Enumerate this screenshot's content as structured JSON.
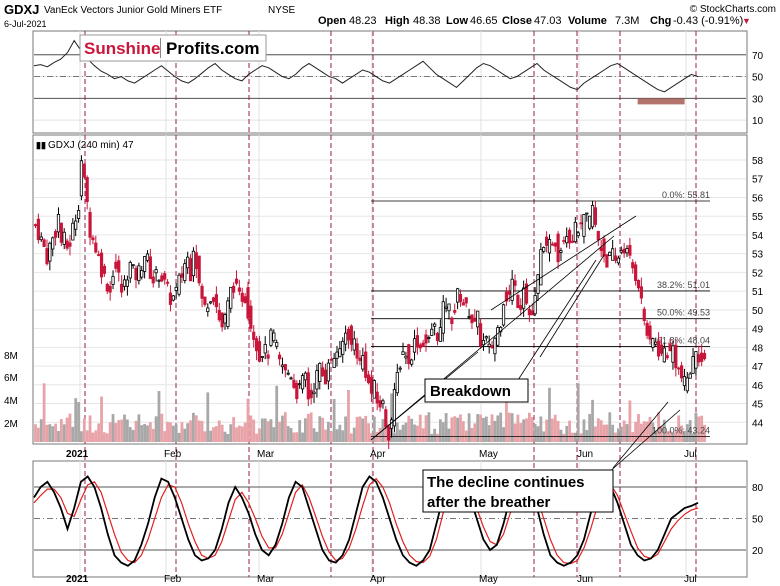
{
  "header": {
    "symbol": "GDXJ",
    "name": "VanEck Vectors Junior Gold Miners ETF",
    "exchange": "NYSE",
    "date": "6-Jul-2021",
    "open_label": "Open",
    "open": "48.23",
    "high_label": "High",
    "high": "48.38",
    "low_label": "Low",
    "low": "46.65",
    "close_label": "Close",
    "close": "47.03",
    "volume_label": "Volume",
    "volume": "7.3M",
    "chg_label": "Chg",
    "chg": "-0.43 (-0.91%)",
    "credit": "© StockCharts.com"
  },
  "logo": {
    "part1": "Sunshine",
    "part2": "Profits.com"
  },
  "colors": {
    "up": "#000000",
    "down": "#c8173a",
    "vol_up": "#a8a8a8",
    "vol_down": "#e8a3a8",
    "vline": "#9b1b4a",
    "stoch_k": "#000000",
    "stoch_d": "#e0201f",
    "rsi": "#222222",
    "rsi_fill": "#a35a52"
  },
  "chart_data": [
    {
      "type": "line",
      "panel": "RSI",
      "yticks": [
        10,
        30,
        50,
        70
      ],
      "ylim": [
        0,
        90
      ],
      "reference_lines": [
        30,
        70
      ],
      "series": [
        {
          "values": [
            60,
            61,
            59,
            63,
            66,
            72,
            83,
            74,
            66,
            60,
            55,
            52,
            48,
            50,
            46,
            44,
            48,
            52,
            56,
            60,
            55,
            50,
            46,
            44,
            48,
            53,
            58,
            62,
            56,
            52,
            48,
            46,
            52,
            56,
            60,
            58,
            54,
            50,
            48,
            52,
            58,
            62,
            58,
            54,
            50,
            48,
            44,
            48,
            52,
            56,
            54,
            50,
            46,
            44,
            48,
            52,
            56,
            60,
            64,
            58,
            52,
            48,
            44,
            40,
            46,
            52,
            58,
            62,
            60,
            56,
            52,
            48,
            50,
            54,
            58,
            62,
            56,
            52,
            48,
            44,
            40,
            38,
            44,
            48,
            52,
            56,
            60,
            62,
            58,
            54,
            50,
            46,
            42,
            38,
            36,
            40,
            44,
            48,
            52,
            50
          ]
        }
      ]
    },
    {
      "type": "candlestick",
      "panel": "price",
      "title": "GDXJ (240 min) 47",
      "yticks": [
        44,
        45,
        46,
        47,
        48,
        49,
        50,
        51,
        52,
        53,
        54,
        55,
        56,
        57,
        58
      ],
      "ylim": [
        43.0,
        58.8
      ],
      "x_labels": [
        "2021",
        "Feb",
        "Mar",
        "Apr",
        "May",
        "Jun",
        "Jul"
      ],
      "volume_ticks": [
        "8M",
        "6M",
        "4M",
        "2M"
      ],
      "fibonacci": [
        {
          "label": "0.0%: 55.81",
          "value": 55.81
        },
        {
          "label": "38.2%: 51.01",
          "value": 51.01
        },
        {
          "label": "50.0%: 49.53",
          "value": 49.53
        },
        {
          "label": "61.8%: 48.04",
          "value": 48.04
        },
        {
          "label": "100.0%: 43.24",
          "value": 43.24
        }
      ],
      "close_path": [
        [
          0,
          54.5
        ],
        [
          4,
          54.0
        ],
        [
          8,
          53.5
        ],
        [
          12,
          52.8
        ],
        [
          16,
          53.6
        ],
        [
          20,
          54.0
        ],
        [
          24,
          55.0
        ],
        [
          28,
          53.2
        ],
        [
          31,
          54.0
        ],
        [
          34,
          53.0
        ],
        [
          38,
          54.2
        ],
        [
          42,
          55.0
        ],
        [
          46,
          56.0
        ],
        [
          48,
          58.0
        ],
        [
          50,
          57.0
        ],
        [
          53,
          56.2
        ],
        [
          56,
          54.5
        ],
        [
          58,
          54.0
        ],
        [
          62,
          53.5
        ],
        [
          66,
          52.8
        ],
        [
          70,
          52.0
        ],
        [
          74,
          51.5
        ],
        [
          78,
          51.0
        ],
        [
          82,
          52.5
        ],
        [
          86,
          52.0
        ],
        [
          90,
          51.0
        ],
        [
          94,
          51.5
        ],
        [
          98,
          52.5
        ],
        [
          102,
          52.0
        ],
        [
          106,
          51.8
        ],
        [
          110,
          52.3
        ],
        [
          114,
          53.0
        ],
        [
          118,
          52.5
        ],
        [
          122,
          51.5
        ],
        [
          126,
          51.8
        ],
        [
          130,
          52.0
        ],
        [
          134,
          51.5
        ],
        [
          138,
          51.0
        ],
        [
          142,
          50.5
        ],
        [
          146,
          50.8
        ],
        [
          150,
          51.5
        ],
        [
          154,
          52.0
        ],
        [
          158,
          53.0
        ],
        [
          162,
          52.0
        ],
        [
          165,
          53.5
        ],
        [
          168,
          52.5
        ],
        [
          172,
          51.0
        ],
        [
          176,
          50.0
        ],
        [
          180,
          50.5
        ],
        [
          185,
          51.0
        ],
        [
          190,
          50.0
        ],
        [
          194,
          49.0
        ],
        [
          198,
          49.5
        ],
        [
          202,
          50.5
        ],
        [
          206,
          51.5
        ],
        [
          210,
          51.0
        ],
        [
          214,
          50.5
        ],
        [
          218,
          51.0
        ],
        [
          222,
          50.0
        ],
        [
          226,
          49.0
        ],
        [
          230,
          48.5
        ],
        [
          234,
          47.5
        ],
        [
          238,
          48.0
        ],
        [
          242,
          47.5
        ],
        [
          246,
          48.5
        ],
        [
          250,
          48.5
        ],
        [
          254,
          47.2
        ],
        [
          258,
          47.0
        ],
        [
          262,
          46.5
        ],
        [
          266,
          46.8
        ],
        [
          270,
          46.0
        ],
        [
          274,
          45.5
        ],
        [
          278,
          46.0
        ],
        [
          282,
          46.5
        ],
        [
          286,
          45.0
        ],
        [
          290,
          45.8
        ],
        [
          294,
          46.5
        ],
        [
          298,
          47.0
        ],
        [
          302,
          46.0
        ],
        [
          306,
          47.5
        ],
        [
          310,
          47.0
        ],
        [
          314,
          48.0
        ],
        [
          318,
          47.5
        ],
        [
          322,
          48.5
        ],
        [
          326,
          49.0
        ],
        [
          330,
          48.0
        ],
        [
          334,
          48.5
        ],
        [
          338,
          47.0
        ],
        [
          342,
          47.5
        ],
        [
          346,
          46.5
        ],
        [
          350,
          45.5
        ],
        [
          354,
          45.8
        ],
        [
          358,
          44.8
        ],
        [
          362,
          45.2
        ],
        [
          366,
          44.0
        ],
        [
          370,
          43.3
        ],
        [
          374,
          45.0
        ],
        [
          378,
          46.5
        ],
        [
          382,
          47.5
        ],
        [
          386,
          48.0
        ],
        [
          390,
          47.0
        ],
        [
          394,
          48.0
        ],
        [
          398,
          48.5
        ],
        [
          402,
          48.0
        ],
        [
          406,
          48.5
        ],
        [
          410,
          48.0
        ],
        [
          414,
          49.0
        ],
        [
          418,
          49.0
        ],
        [
          422,
          48.5
        ],
        [
          426,
          50.0
        ],
        [
          430,
          50.5
        ],
        [
          434,
          49.5
        ],
        [
          438,
          50.0
        ],
        [
          442,
          51.0
        ],
        [
          446,
          50.5
        ],
        [
          450,
          50.0
        ],
        [
          454,
          50.0
        ],
        [
          458,
          49.0
        ],
        [
          462,
          49.5
        ],
        [
          466,
          48.0
        ],
        [
          470,
          48.5
        ],
        [
          474,
          47.8
        ],
        [
          478,
          48.2
        ],
        [
          482,
          48.8
        ],
        [
          486,
          49.5
        ],
        [
          490,
          51.0
        ],
        [
          494,
          50.5
        ],
        [
          498,
          51.5
        ],
        [
          502,
          51.0
        ],
        [
          506,
          50.0
        ],
        [
          510,
          51.5
        ],
        [
          514,
          50.0
        ],
        [
          518,
          49.5
        ],
        [
          522,
          50.5
        ],
        [
          526,
          52.0
        ],
        [
          530,
          54.0
        ],
        [
          534,
          53.0
        ],
        [
          538,
          53.5
        ],
        [
          542,
          54.0
        ],
        [
          546,
          53.0
        ],
        [
          550,
          53.5
        ],
        [
          554,
          54.5
        ],
        [
          558,
          53.8
        ],
        [
          562,
          54.0
        ],
        [
          566,
          54.5
        ],
        [
          570,
          54.2
        ],
        [
          574,
          55.0
        ],
        [
          578,
          54.5
        ],
        [
          582,
          55.5
        ],
        [
          586,
          54.0
        ],
        [
          590,
          53.5
        ],
        [
          594,
          53.0
        ],
        [
          598,
          52.5
        ],
        [
          602,
          53.0
        ],
        [
          606,
          52.5
        ],
        [
          610,
          53.0
        ],
        [
          614,
          53.5
        ],
        [
          618,
          53.0
        ],
        [
          622,
          52.5
        ],
        [
          626,
          52.0
        ],
        [
          630,
          51.5
        ],
        [
          634,
          50.0
        ],
        [
          638,
          49.0
        ],
        [
          642,
          48.0
        ],
        [
          646,
          48.5
        ],
        [
          650,
          48.0
        ],
        [
          654,
          47.5
        ],
        [
          658,
          48.0
        ],
        [
          662,
          47.5
        ],
        [
          666,
          48.0
        ],
        [
          670,
          47.0
        ],
        [
          674,
          46.5
        ],
        [
          678,
          46.0
        ],
        [
          682,
          46.5
        ],
        [
          686,
          47.0
        ],
        [
          690,
          48.0
        ],
        [
          694,
          47.5
        ],
        [
          698,
          47.0
        ]
      ]
    },
    {
      "type": "line",
      "panel": "stochastic",
      "yticks": [
        20,
        50,
        80
      ],
      "ylim": [
        0,
        100
      ],
      "series": [
        {
          "values": [
            70,
            80,
            85,
            75,
            60,
            40,
            60,
            85,
            90,
            80,
            60,
            35,
            15,
            8,
            5,
            10,
            25,
            45,
            70,
            88,
            85,
            70,
            50,
            30,
            15,
            10,
            12,
            20,
            40,
            65,
            80,
            70,
            55,
            35,
            20,
            15,
            25,
            45,
            70,
            85,
            80,
            60,
            40,
            20,
            10,
            8,
            15,
            30,
            55,
            80,
            90,
            85,
            70,
            50,
            30,
            15,
            8,
            5,
            10,
            20,
            45,
            70,
            88,
            92,
            85,
            70,
            50,
            30,
            20,
            25,
            45,
            70,
            85,
            90,
            80,
            60,
            35,
            15,
            8,
            5,
            8,
            15,
            30,
            55,
            75,
            85,
            80,
            65,
            45,
            25,
            15,
            10,
            12,
            20,
            35,
            50,
            55,
            60,
            62,
            65
          ]
        },
        {
          "values": [
            65,
            72,
            78,
            78,
            70,
            55,
            52,
            68,
            82,
            85,
            75,
            55,
            35,
            18,
            10,
            8,
            15,
            30,
            50,
            70,
            82,
            80,
            65,
            45,
            28,
            15,
            12,
            15,
            28,
            48,
            68,
            75,
            65,
            50,
            33,
            22,
            22,
            35,
            55,
            75,
            82,
            70,
            52,
            33,
            18,
            10,
            12,
            22,
            40,
            62,
            82,
            88,
            80,
            65,
            45,
            28,
            15,
            9,
            8,
            14,
            30,
            55,
            75,
            88,
            88,
            78,
            60,
            42,
            28,
            25,
            35,
            55,
            75,
            85,
            85,
            70,
            50,
            30,
            15,
            8,
            7,
            10,
            22,
            40,
            62,
            78,
            82,
            72,
            55,
            38,
            22,
            14,
            12,
            16,
            28,
            40,
            48,
            54,
            58,
            60
          ]
        }
      ]
    }
  ]
}
